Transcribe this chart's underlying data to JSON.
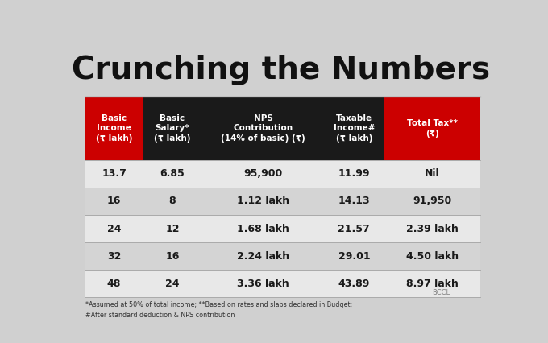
{
  "title": "Crunching the Numbers",
  "title_fontsize": 28,
  "title_fontweight": "bold",
  "background_color": "#d0d0d0",
  "header_col1_bg": "#cc0000",
  "header_col2_bg": "#1a1a1a",
  "header_col3_bg": "#1a1a1a",
  "header_col4_bg": "#1a1a1a",
  "header_col5_bg": "#cc0000",
  "header_text_color": "#ffffff",
  "data_text_color": "#1a1a1a",
  "col_headers": [
    "Basic\nIncome\n(₹ lakh)",
    "Basic\nSalary*\n(₹ lakh)",
    "NPS\nContribution\n(14% of basic) (₹)",
    "Taxable\nIncome#\n(₹ lakh)",
    "Total Tax**\n(₹)"
  ],
  "rows": [
    [
      "13.7",
      "6.85",
      "95,900",
      "11.99",
      "Nil"
    ],
    [
      "16",
      "8",
      "1.12 lakh",
      "14.13",
      "91,950"
    ],
    [
      "24",
      "12",
      "1.68 lakh",
      "21.57",
      "2.39 lakh"
    ],
    [
      "32",
      "16",
      "2.24 lakh",
      "29.01",
      "4.50 lakh"
    ],
    [
      "48",
      "24",
      "3.36 lakh",
      "43.89",
      "8.97 lakh"
    ]
  ],
  "footnote": "*Assumed at 50% of total income; **Based on rates and slabs declared in Budget;\n#After standard deduction & NPS contribution",
  "watermark": "BCCL",
  "row_colors": [
    "#e8e8e8",
    "#d4d4d4"
  ]
}
